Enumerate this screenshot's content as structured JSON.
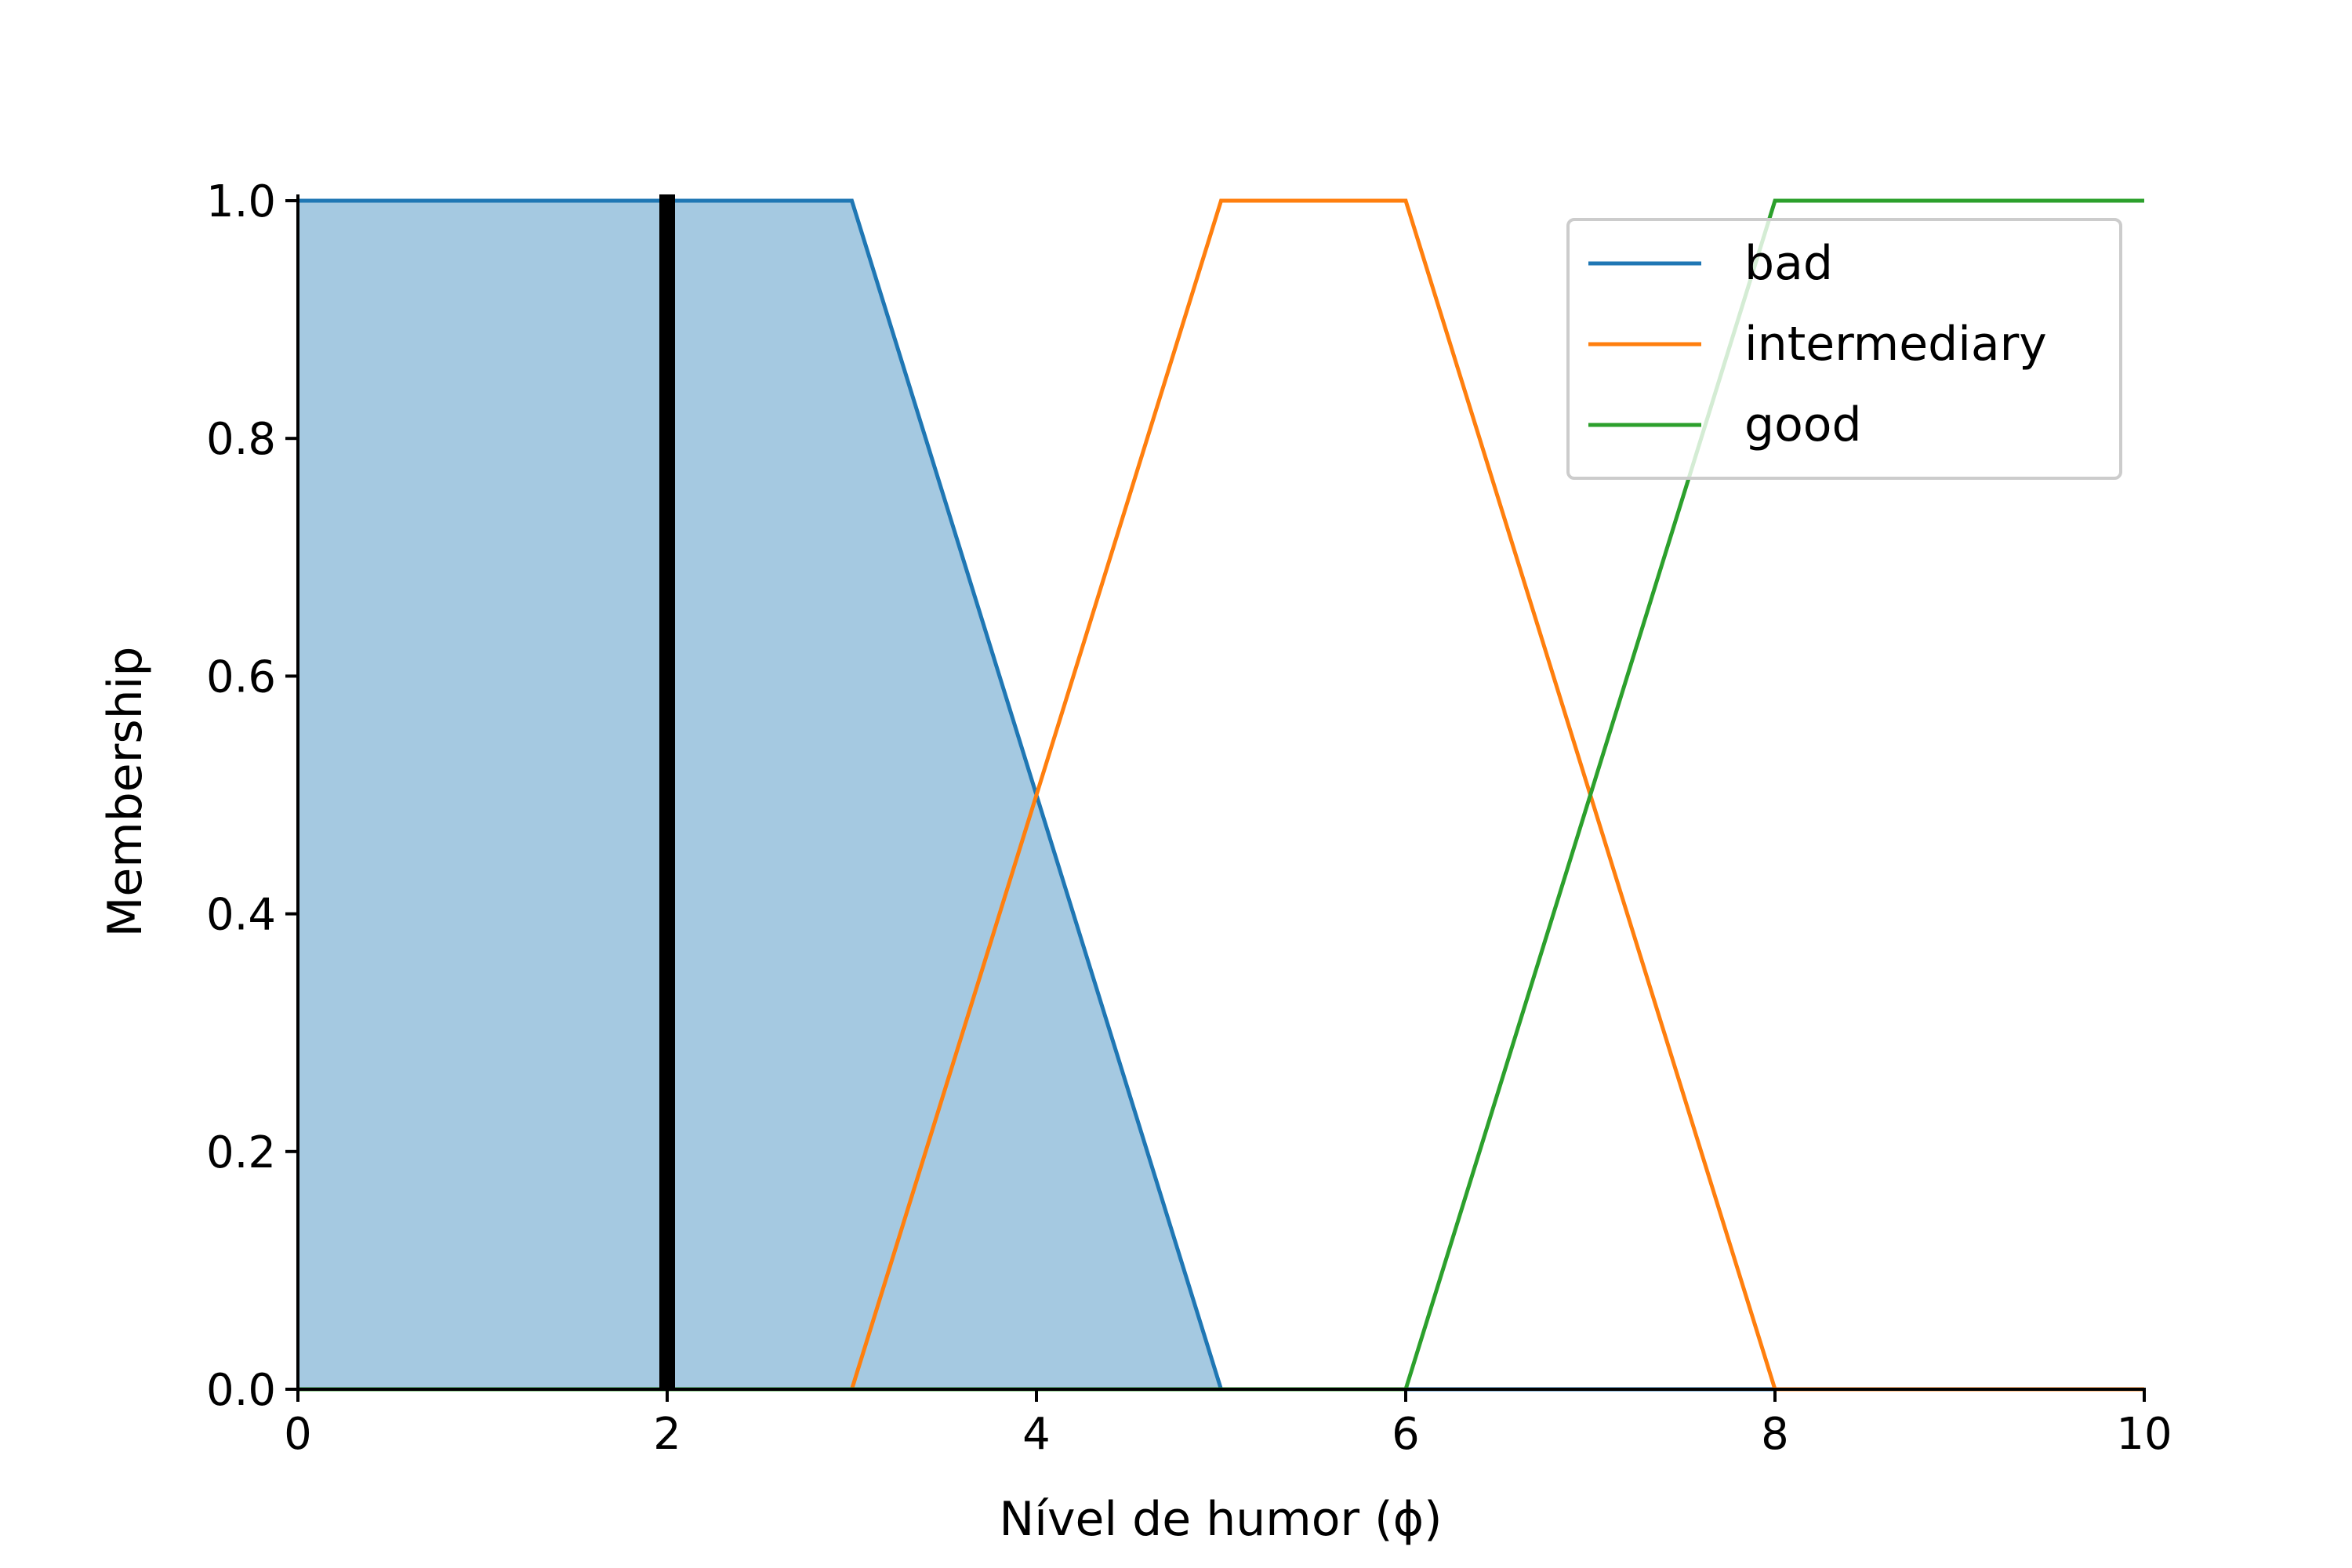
{
  "chart_data": {
    "type": "line",
    "xlabel": "Nível de humor (ϕ)",
    "ylabel": "Membership",
    "xlim": [
      0,
      10
    ],
    "ylim": [
      0,
      1
    ],
    "x_ticks": [
      0,
      2,
      4,
      6,
      8,
      10
    ],
    "x_tick_labels": [
      "0",
      "2",
      "4",
      "6",
      "8",
      "10"
    ],
    "y_ticks": [
      0,
      0.2,
      0.4,
      0.6,
      0.8,
      1.0
    ],
    "y_tick_labels": [
      "0.0",
      "0.2",
      "0.4",
      "0.6",
      "0.8",
      "1.0"
    ],
    "grid": false,
    "legend_position": "top-right",
    "series": [
      {
        "name": "bad",
        "color": "#1f77b4",
        "x": [
          0,
          3,
          5,
          10
        ],
        "y": [
          1,
          1,
          0,
          0
        ]
      },
      {
        "name": "intermediary",
        "color": "#ff7f0e",
        "x": [
          0,
          3,
          5,
          6,
          8,
          10
        ],
        "y": [
          0,
          0,
          1,
          1,
          0,
          0
        ]
      },
      {
        "name": "good",
        "color": "#2ca02c",
        "x": [
          0,
          6,
          8,
          10
        ],
        "y": [
          0,
          0,
          1,
          1
        ]
      }
    ],
    "filled_region": {
      "series": "bad",
      "x": [
        0,
        3,
        5
      ],
      "y": [
        1,
        1,
        0
      ],
      "color": "#1f77b4",
      "opacity": 0.4
    },
    "marker_line": {
      "x": 2,
      "color": "#000000"
    }
  }
}
